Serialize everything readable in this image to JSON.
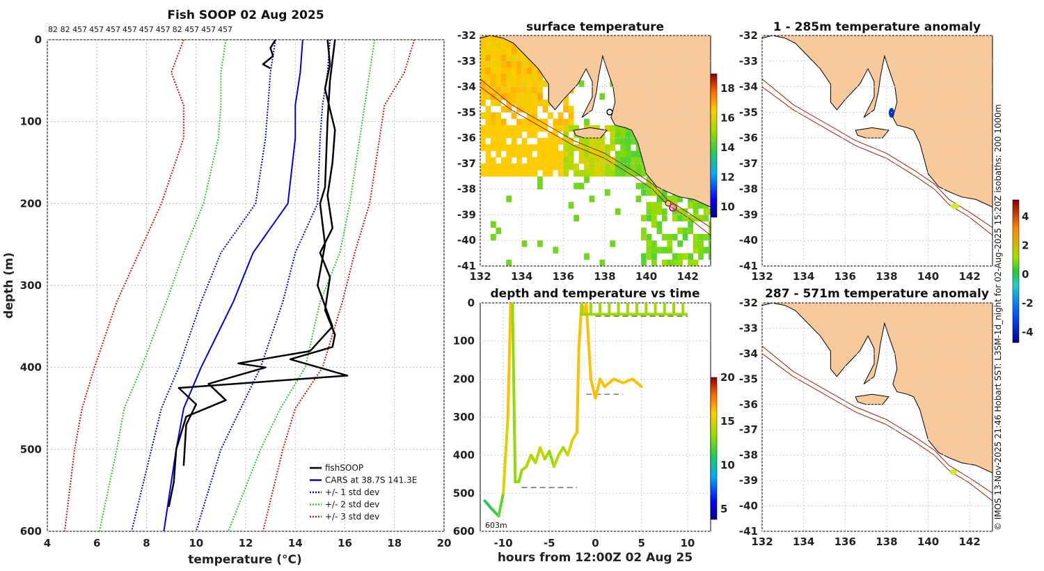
{
  "chart_data": [
    {
      "type": "line",
      "title": "Fish SOOP 02 Aug 2025",
      "xlabel": "temperature",
      "xlabel_unit": "(°C)",
      "ylabel": "depth (m)",
      "xlim": [
        4,
        20
      ],
      "ylim": [
        600,
        0
      ],
      "xticks": [
        "4",
        "6",
        "8",
        "10",
        "12",
        "14",
        "16",
        "18",
        "20"
      ],
      "yticks": [
        "0",
        "100",
        "200",
        "300",
        "400",
        "500",
        "600"
      ],
      "top_labels": [
        "82",
        "82",
        "457",
        "457",
        "457",
        "457",
        "457",
        "457",
        "82",
        "457",
        "457",
        "457"
      ],
      "legend": [
        {
          "label": "fishSOOP",
          "color": "#000000",
          "style": "solid"
        },
        {
          "label": "CARS at 38.7S 141.3E",
          "color": "#0000dd",
          "style": "solid"
        },
        {
          "label": "+/- 1 std dev",
          "color": "#0000dd",
          "style": "dotted"
        },
        {
          "label": "+/- 2 std dev",
          "color": "#22cc22",
          "style": "dotted"
        },
        {
          "label": "+/- 3 std dev",
          "color": "#dd1100",
          "style": "dotted"
        }
      ],
      "series": [
        {
          "name": "CARS mean",
          "depth": [
            0,
            40,
            80,
            120,
            200,
            260,
            320,
            400,
            450,
            500,
            600
          ],
          "temp": [
            14.3,
            14.2,
            14.0,
            14.0,
            13.7,
            12.3,
            11.5,
            10.2,
            9.5,
            9.2,
            8.7
          ]
        },
        {
          "name": "+1 std",
          "depth": [
            0,
            40,
            80,
            120,
            200,
            260,
            320,
            400,
            450,
            500,
            600
          ],
          "temp": [
            15.4,
            15.3,
            15.1,
            15.0,
            14.9,
            14.0,
            13.5,
            12.6,
            11.8,
            11.0,
            10.0
          ]
        },
        {
          "name": "-1 std",
          "depth": [
            0,
            40,
            80,
            120,
            200,
            260,
            320,
            400,
            450,
            500,
            600
          ],
          "temp": [
            13.2,
            13.0,
            12.9,
            12.8,
            12.4,
            11.0,
            10.2,
            9.3,
            8.6,
            8.2,
            7.4
          ]
        },
        {
          "name": "+2 std",
          "depth": [
            0,
            40,
            80,
            120,
            200,
            260,
            320,
            400,
            450,
            500,
            600
          ],
          "temp": [
            17.2,
            17.0,
            16.8,
            16.6,
            16.2,
            15.8,
            15.0,
            14.4,
            13.4,
            12.6,
            11.3
          ]
        },
        {
          "name": "-2 std",
          "depth": [
            0,
            40,
            80,
            120,
            200,
            260,
            320,
            400,
            450,
            500,
            600
          ],
          "temp": [
            11.2,
            11.0,
            11.0,
            10.9,
            10.3,
            9.5,
            8.8,
            7.8,
            7.1,
            6.8,
            6.1
          ]
        },
        {
          "name": "+3 std",
          "depth": [
            0,
            40,
            80,
            120,
            200,
            260,
            320,
            400,
            450,
            500,
            600
          ],
          "temp": [
            18.8,
            18.4,
            17.6,
            17.4,
            17.0,
            16.4,
            15.9,
            15.1,
            14.0,
            13.5,
            12.7
          ]
        },
        {
          "name": "-3 std",
          "depth": [
            0,
            40,
            80,
            120,
            200,
            260,
            320,
            400,
            450,
            500,
            600
          ],
          "temp": [
            9.5,
            9.0,
            9.5,
            9.5,
            8.6,
            7.7,
            6.8,
            5.9,
            5.4,
            5.1,
            4.7
          ]
        },
        {
          "name": "fishSOOP A",
          "depth": [
            0,
            50,
            100,
            180,
            200,
            250,
            300,
            350,
            380,
            395,
            400,
            420,
            440,
            460,
            500,
            540,
            570
          ],
          "temp": [
            15.6,
            15.4,
            15.3,
            15.2,
            15.0,
            15.2,
            14.9,
            15.5,
            14.6,
            11.7,
            12.8,
            10.5,
            11.2,
            9.6,
            9.2,
            9.1,
            8.9
          ]
        },
        {
          "name": "fishSOOP B",
          "depth": [
            0,
            30,
            60,
            110,
            150,
            190,
            230,
            260,
            290,
            330,
            360,
            375,
            390,
            410,
            425,
            445,
            470,
            520
          ],
          "temp": [
            15.3,
            15.4,
            15.2,
            15.6,
            15.5,
            15.3,
            15.5,
            15.0,
            15.4,
            15.2,
            15.6,
            15.5,
            13.8,
            16.1,
            9.3,
            10.0,
            9.6,
            9.5
          ]
        },
        {
          "name": "fishSOOP shallow",
          "depth": [
            0,
            10,
            20,
            30,
            35
          ],
          "temp": [
            13.2,
            13.0,
            13.1,
            12.7,
            13.0
          ]
        }
      ],
      "annotations": []
    },
    {
      "type": "heatmap",
      "title": "surface temperature",
      "xticks": [
        "132",
        "134",
        "136",
        "138",
        "140",
        "142"
      ],
      "yticks": [
        "-32",
        "-33",
        "-34",
        "-35",
        "-36",
        "-37",
        "-38",
        "-39",
        "-40",
        "-41"
      ],
      "colorbar_ticks": [
        "10",
        "12",
        "14",
        "16",
        "18"
      ]
    },
    {
      "type": "line",
      "title": "depth and temperature vs time",
      "xlabel": "hours from 12:00Z 02 Aug 25",
      "xticks": [
        "-10",
        "-5",
        "0",
        "5",
        "10"
      ],
      "yticks": [
        "0",
        "100",
        "200",
        "300",
        "400",
        "500",
        "600"
      ],
      "xlim": [
        -12.5,
        12.5
      ],
      "ylim": [
        600,
        0
      ],
      "annotation": "603m",
      "colorbar_ticks": [
        "5",
        "10",
        "15",
        "20"
      ],
      "track_hours": [
        -12,
        -11.3,
        -10.5,
        -10,
        -9.5,
        -9.2,
        -9,
        -8.7,
        -8.3,
        -8,
        -7.5,
        -7,
        -6.5,
        -6,
        -5.5,
        -5,
        -4.5,
        -4,
        -3.5,
        -3,
        -2.5,
        -2,
        -1.8,
        -1.5,
        -1.2,
        -1,
        -0.5,
        0,
        0.5,
        1,
        2,
        3,
        4,
        5
      ],
      "track_depth": [
        520,
        540,
        560,
        500,
        300,
        0,
        0,
        470,
        470,
        440,
        430,
        400,
        420,
        380,
        410,
        390,
        430,
        400,
        380,
        400,
        360,
        340,
        120,
        0,
        30,
        0,
        200,
        250,
        200,
        220,
        200,
        210,
        200,
        220
      ],
      "track_temp": [
        11,
        10.5,
        11,
        12,
        15,
        16,
        16,
        13,
        13,
        13,
        13.5,
        14,
        13.5,
        14,
        14.5,
        13.5,
        13,
        14,
        14,
        13.5,
        15,
        15,
        16,
        16,
        16,
        16,
        16,
        16,
        16,
        16,
        16,
        16,
        16,
        16
      ],
      "surface_hours": [
        -1.5,
        10
      ],
      "surface_depth": [
        30,
        30
      ],
      "dashes": [
        {
          "x0": -8,
          "x1": -2,
          "depth": 485
        },
        {
          "x0": -1,
          "x1": 3,
          "depth": 240
        },
        {
          "x0": 0,
          "x1": 10,
          "depth": 35
        }
      ]
    },
    {
      "type": "heatmap",
      "title": "1 - 285m temperature anomaly",
      "xticks": [
        "132",
        "134",
        "136",
        "138",
        "140",
        "142"
      ],
      "yticks": [
        "-32",
        "-33",
        "-34",
        "-35",
        "-36",
        "-37",
        "-38",
        "-39",
        "-40",
        "-41"
      ],
      "colorbar_ticks": [
        "-4",
        "-2",
        "0",
        "2",
        "4"
      ]
    },
    {
      "type": "heatmap",
      "title": "287 - 571m temperature anomaly",
      "xticks": [
        "132",
        "134",
        "136",
        "138",
        "140",
        "142"
      ],
      "yticks": [
        "-32",
        "-33",
        "-34",
        "-35",
        "-36",
        "-37",
        "-38",
        "-39",
        "-40",
        "-41"
      ]
    }
  ],
  "side_caption": "© IMOS 13-Nov-2025 21:46 Hobart SST: L3SM-1d_night for 02-Aug-2025 15:20Z isobaths: 200  1000m",
  "colors": {
    "land": "#f8c99a",
    "sea": "#ffffff",
    "isobath": "#a61c00"
  }
}
